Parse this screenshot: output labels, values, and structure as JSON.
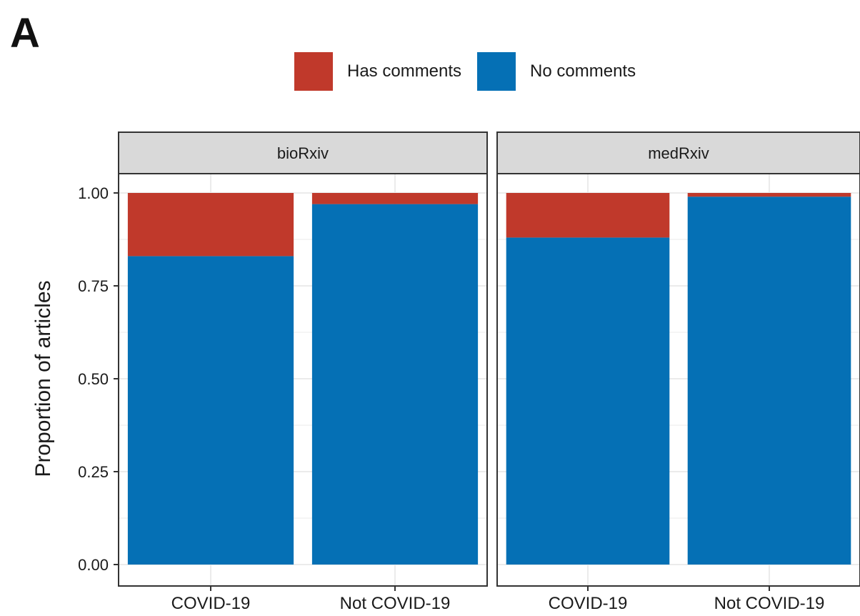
{
  "panel_letter": "A",
  "colors": {
    "has_comments": "#C0392B",
    "no_comments": "#0570B5",
    "strip_bg": "#D9D9D9",
    "grid": "#EBEBEB",
    "frame": "#333333",
    "text": "#1a1a1a"
  },
  "chart_data": {
    "type": "bar",
    "stacked": true,
    "ylabel": "Proportion of articles",
    "xlabel": "",
    "ylim": [
      0,
      1
    ],
    "yticks": [
      0.0,
      0.25,
      0.5,
      0.75,
      1.0
    ],
    "ytick_labels": [
      "0.00",
      "0.25",
      "0.50",
      "0.75",
      "1.00"
    ],
    "categories": [
      "COVID-19",
      "Not COVID-19"
    ],
    "legend": {
      "position": "top",
      "entries": [
        "Has comments",
        "No comments"
      ]
    },
    "grid": true,
    "facets": [
      {
        "label": "bioRxiv",
        "series": [
          {
            "name": "No comments",
            "values": [
              0.83,
              0.97
            ]
          },
          {
            "name": "Has comments",
            "values": [
              0.17,
              0.03
            ]
          }
        ]
      },
      {
        "label": "medRxiv",
        "series": [
          {
            "name": "No comments",
            "values": [
              0.88,
              0.99
            ]
          },
          {
            "name": "Has comments",
            "values": [
              0.12,
              0.01
            ]
          }
        ]
      }
    ]
  }
}
